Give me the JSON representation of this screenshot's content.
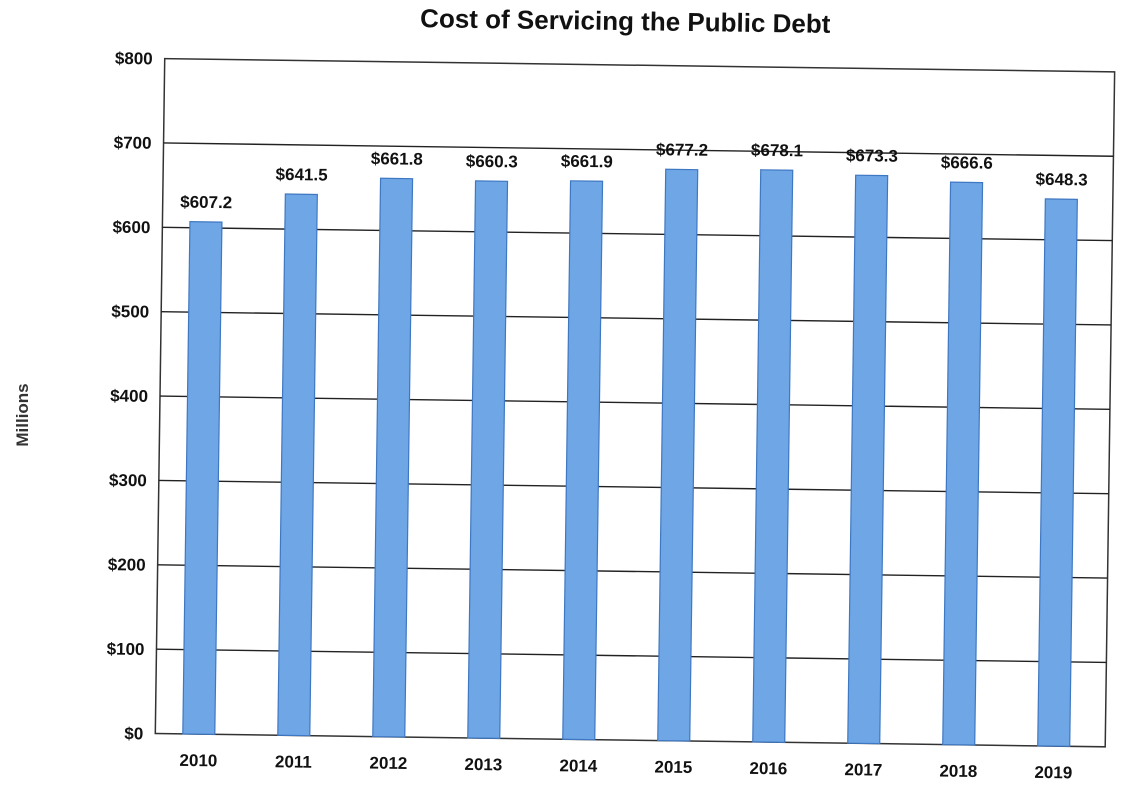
{
  "chart_data": {
    "type": "bar",
    "title": "Cost of Servicing the Public Debt",
    "xlabel": "",
    "ylabel": "Millions",
    "categories": [
      "2010",
      "2011",
      "2012",
      "2013",
      "2014",
      "2015",
      "2016",
      "2017",
      "2018",
      "2019"
    ],
    "values": [
      607.2,
      641.5,
      661.8,
      660.3,
      661.9,
      677.2,
      678.1,
      673.3,
      666.6,
      648.3
    ],
    "data_labels": [
      "$607.2",
      "$641.5",
      "$661.8",
      "$660.3",
      "$661.9",
      "$677.2",
      "$678.1",
      "$673.3",
      "$666.6",
      "$648.3"
    ],
    "ylim": [
      0,
      800
    ],
    "yticks": [
      0,
      100,
      200,
      300,
      400,
      500,
      600,
      700,
      800
    ],
    "ytick_labels": [
      "$0",
      "$100",
      "$200",
      "$300",
      "$400",
      "$500",
      "$600",
      "$700",
      "$800"
    ],
    "grid": true,
    "legend": "none",
    "bar_color": "#6ea6e6",
    "bar_edge_color": "#3f78c2"
  }
}
